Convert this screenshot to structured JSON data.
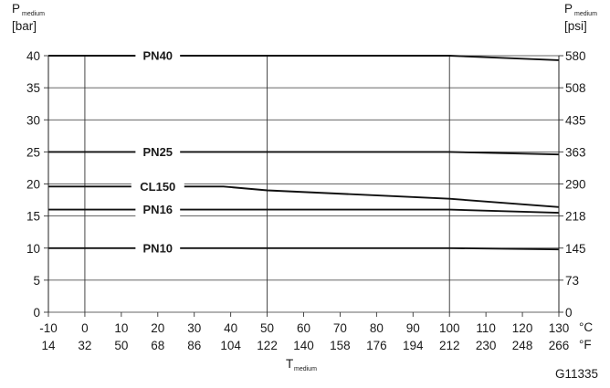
{
  "chart_data": {
    "type": "line",
    "code": "G11335",
    "y_left_label": {
      "main": "P",
      "sub": "medium",
      "unit": "[bar]"
    },
    "y_right_label": {
      "main": "P",
      "sub": "medium",
      "unit": "[psi]"
    },
    "x_label": {
      "main": "T",
      "sub": "medium"
    },
    "x_unit_c": "°C",
    "x_unit_f": "°F",
    "xlim": [
      -10,
      130
    ],
    "ylim": [
      0,
      40
    ],
    "x_ticks_c": [
      "-10",
      "0",
      "10",
      "20",
      "30",
      "40",
      "50",
      "60",
      "70",
      "80",
      "90",
      "100",
      "110",
      "120",
      "130"
    ],
    "x_ticks_f": [
      "14",
      "32",
      "50",
      "68",
      "86",
      "104",
      "122",
      "140",
      "158",
      "176",
      "194",
      "212",
      "230",
      "248",
      "266"
    ],
    "y_ticks_bar": [
      "0",
      "5",
      "10",
      "15",
      "20",
      "25",
      "30",
      "35",
      "40"
    ],
    "y_ticks_psi": [
      "0",
      "73",
      "145",
      "218",
      "290",
      "363",
      "435",
      "508",
      "580"
    ],
    "series": [
      {
        "name": "PN40",
        "x": [
          -10,
          100,
          130
        ],
        "y": [
          40,
          40,
          39.3
        ]
      },
      {
        "name": "PN25",
        "x": [
          -10,
          100,
          130
        ],
        "y": [
          25,
          25,
          24.6
        ]
      },
      {
        "name": "CL150",
        "x": [
          -10,
          38,
          50,
          100,
          130
        ],
        "y": [
          19.6,
          19.6,
          19.0,
          17.7,
          16.4
        ]
      },
      {
        "name": "PN16",
        "x": [
          -10,
          100,
          130
        ],
        "y": [
          16,
          16,
          15.5
        ]
      },
      {
        "name": "PN10",
        "x": [
          -10,
          100,
          130
        ],
        "y": [
          10,
          10,
          9.8
        ]
      }
    ]
  }
}
